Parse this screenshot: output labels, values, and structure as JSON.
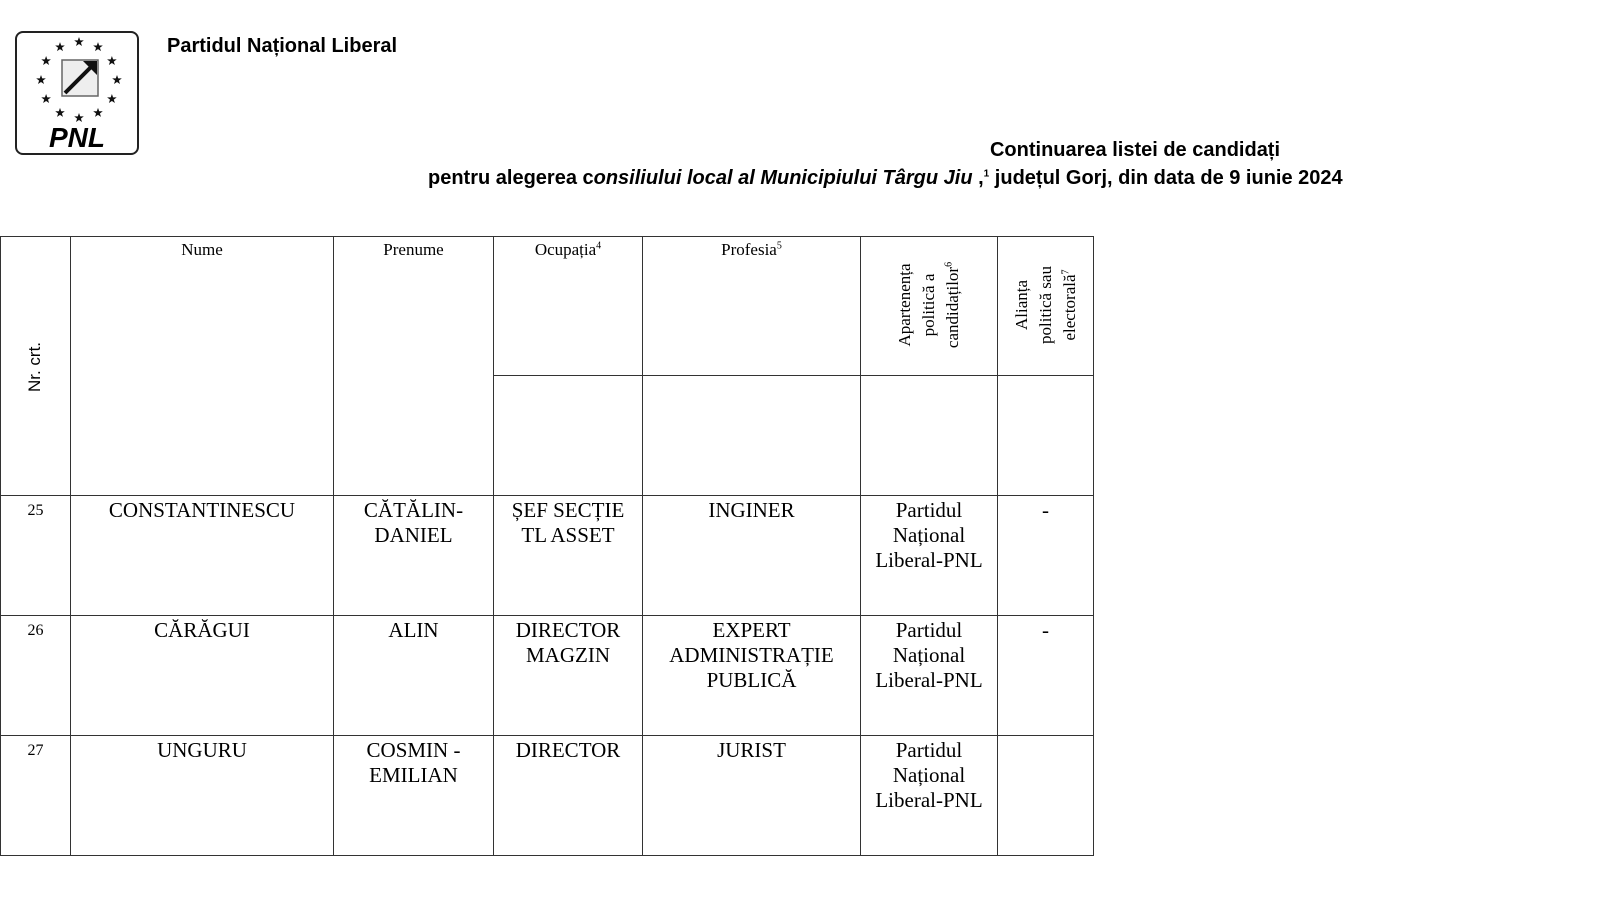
{
  "header": {
    "logo_text": "PNL",
    "party_name": "Partidul Național Liberal",
    "title_line1": "Continuarea listei de candidați",
    "title_line2_pre": "pentru alegerea c",
    "title_line2_italic": "onsiliului local al Municipiului Târgu Jiu",
    "title_line2_sep": " ,",
    "title_line2_sup": "1",
    "title_line2_post": " județul Gorj,  din data de 9 iunie 2024"
  },
  "table": {
    "columns": {
      "nr": "Nr. crt.",
      "nume": "Nume",
      "prenume": "Prenume",
      "ocupatia": "Ocupația",
      "ocupatia_sup": "4",
      "profesia": "Profesia",
      "profesia_sup": "5",
      "apartenenta_1": "Apartenența",
      "apartenenta_2": "politică a",
      "apartenenta_3": "candidaților",
      "apartenenta_sup": "6",
      "alianta_1": "Alianța",
      "alianta_2": "politică sau",
      "alianta_3": "electorală",
      "alianta_sup": "7"
    },
    "rows": [
      {
        "nr": "25",
        "nume": "CONSTANTINESCU",
        "prenume_1": "CĂTĂLIN-",
        "prenume_2": "DANIEL",
        "ocupatia_1": "ȘEF SECȚIE",
        "ocupatia_2": "TL ASSET",
        "ocupatia_3": "",
        "profesia_1": "INGINER",
        "profesia_2": "",
        "profesia_3": "",
        "apartenenta_1": "Partidul",
        "apartenenta_2": "Național",
        "apartenenta_3": "Liberal-PNL",
        "alianta": "-"
      },
      {
        "nr": "26",
        "nume": "CĂRĂGUI",
        "prenume_1": "ALIN",
        "prenume_2": "",
        "ocupatia_1": "DIRECTOR",
        "ocupatia_2": "MAGZIN",
        "ocupatia_3": "",
        "profesia_1": "EXPERT",
        "profesia_2": "ADMINISTRAȚIE",
        "profesia_3": "PUBLICĂ",
        "apartenenta_1": "Partidul",
        "apartenenta_2": "Național",
        "apartenenta_3": "Liberal-PNL",
        "alianta": "-"
      },
      {
        "nr": "27",
        "nume": "UNGURU",
        "prenume_1": "COSMIN -",
        "prenume_2": "EMILIAN",
        "ocupatia_1": "DIRECTOR",
        "ocupatia_2": "",
        "ocupatia_3": "",
        "profesia_1": "JURIST",
        "profesia_2": "",
        "profesia_3": "",
        "apartenenta_1": "Partidul",
        "apartenenta_2": "Național",
        "apartenenta_3": "Liberal-PNL",
        "alianta": ""
      }
    ]
  }
}
